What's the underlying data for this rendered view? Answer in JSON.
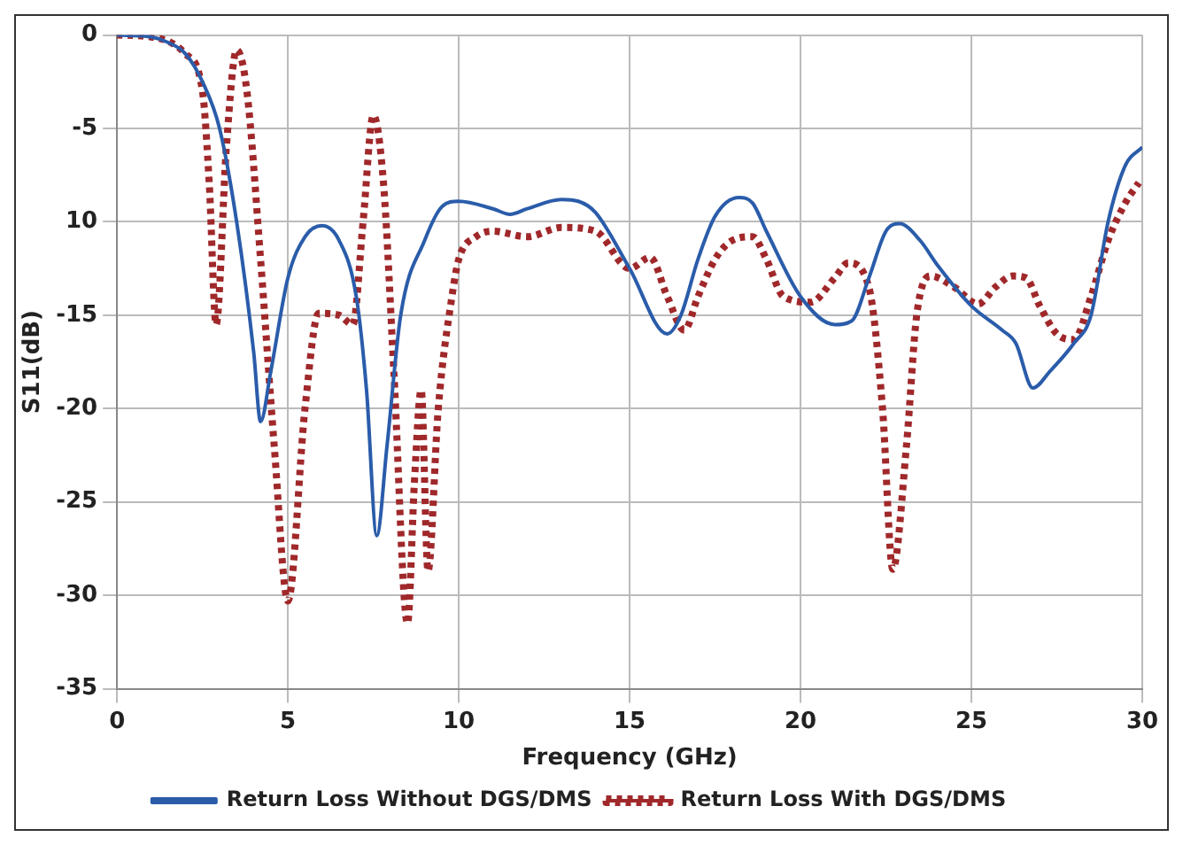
{
  "chart_data": {
    "type": "line",
    "xlabel": "Frequency (GHz)",
    "ylabel": "S11(dB)",
    "xlim": [
      0,
      30
    ],
    "xticks": [
      0,
      5,
      10,
      15,
      20,
      25,
      30
    ],
    "ylim": [
      -35,
      0
    ],
    "yticks": [
      0,
      -5,
      {
        "value": -10,
        "label": "10"
      },
      -15,
      -20,
      -25,
      -30,
      -35
    ],
    "grid": true,
    "legend": "bottom",
    "marker": "none",
    "series": [
      {
        "name": "Return Loss Without DGS/DMS",
        "color": "#2a5caa",
        "line_style": "solid",
        "x": [
          0,
          1,
          1.5,
          2,
          2.5,
          3,
          3.5,
          4,
          4.2,
          4.5,
          5,
          5.5,
          6,
          6.5,
          7,
          7.3,
          7.6,
          7.9,
          8.3,
          9,
          9.5,
          10,
          11,
          11.5,
          12,
          13,
          13.5,
          14,
          15,
          16.1,
          16.5,
          17,
          17.5,
          18.2,
          18.6,
          19,
          20,
          21,
          21.5,
          22,
          22.5,
          22.9,
          23.5,
          24,
          25,
          25.9,
          26.3,
          26.8,
          27.3,
          28,
          28.5,
          29,
          29.5,
          30
        ],
        "values": [
          0,
          -0.1,
          -0.4,
          -1,
          -2.5,
          -5,
          -10,
          -17,
          -20.7,
          -18,
          -13,
          -10.8,
          -10.2,
          -11,
          -14,
          -19,
          -26.8,
          -22,
          -15,
          -11,
          -9.2,
          -8.9,
          -9.3,
          -9.6,
          -9.3,
          -8.8,
          -8.9,
          -9.5,
          -12.5,
          -16,
          -15,
          -12,
          -9.7,
          -8.7,
          -9,
          -10.5,
          -14,
          -15.5,
          -15.3,
          -13,
          -10.5,
          -10.1,
          -11,
          -12.3,
          -14.5,
          -15.8,
          -16.5,
          -18.9,
          -18,
          -16.5,
          -15,
          -10,
          -7,
          -6
        ]
      },
      {
        "name": "Return Loss With DGS/DMS",
        "color": "#a0282a",
        "line_style": "dotted",
        "x": [
          0,
          1,
          2,
          2.5,
          2.7,
          2.9,
          3.2,
          3.5,
          3.8,
          4.2,
          4.6,
          5,
          5.5,
          5.9,
          6.5,
          6.9,
          7.2,
          7.5,
          7.8,
          8.1,
          8.5,
          8.7,
          8.9,
          9.1,
          9.4,
          9.8,
          10,
          10.5,
          11,
          12,
          13,
          14,
          15,
          15.6,
          16.1,
          16.6,
          17,
          17.5,
          18,
          18.6,
          19,
          19.5,
          20.3,
          21,
          21.4,
          22,
          22.4,
          22.7,
          23.1,
          23.4,
          23.8,
          24.5,
          25.2,
          25.7,
          26.2,
          26.6,
          27,
          27.5,
          28,
          28.5,
          29,
          29.5,
          29.9
        ],
        "values": [
          0,
          -0.1,
          -1,
          -3,
          -8,
          -15.5,
          -6,
          -0.8,
          -3,
          -12,
          -22,
          -30.3,
          -20,
          -14.9,
          -15,
          -15.5,
          -10,
          -4.3,
          -8,
          -18,
          -31.5,
          -24,
          -19,
          -28.7,
          -20,
          -14,
          -12,
          -10.8,
          -10.5,
          -10.8,
          -10.3,
          -10.5,
          -12.5,
          -11.9,
          -14,
          -15.8,
          -14,
          -12,
          -11,
          -10.8,
          -12,
          -14,
          -14.3,
          -13,
          -12.2,
          -13.5,
          -20,
          -28.6,
          -22,
          -15,
          -12.9,
          -13.5,
          -14.4,
          -13.5,
          -12.9,
          -13,
          -14.5,
          -16,
          -16.3,
          -14,
          -11,
          -9,
          -7.9
        ]
      }
    ]
  }
}
